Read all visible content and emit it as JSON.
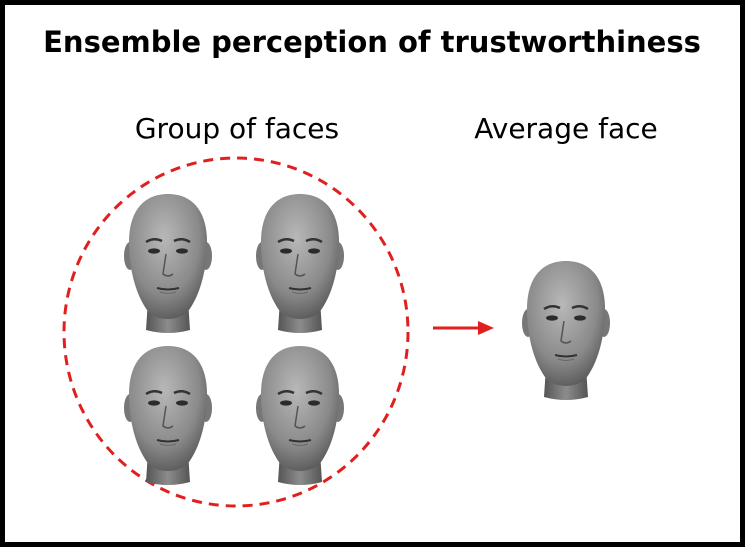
{
  "title": "Ensemble perception of trustworthiness",
  "labels": {
    "group": "Group of faces",
    "average": "Average face"
  }
}
